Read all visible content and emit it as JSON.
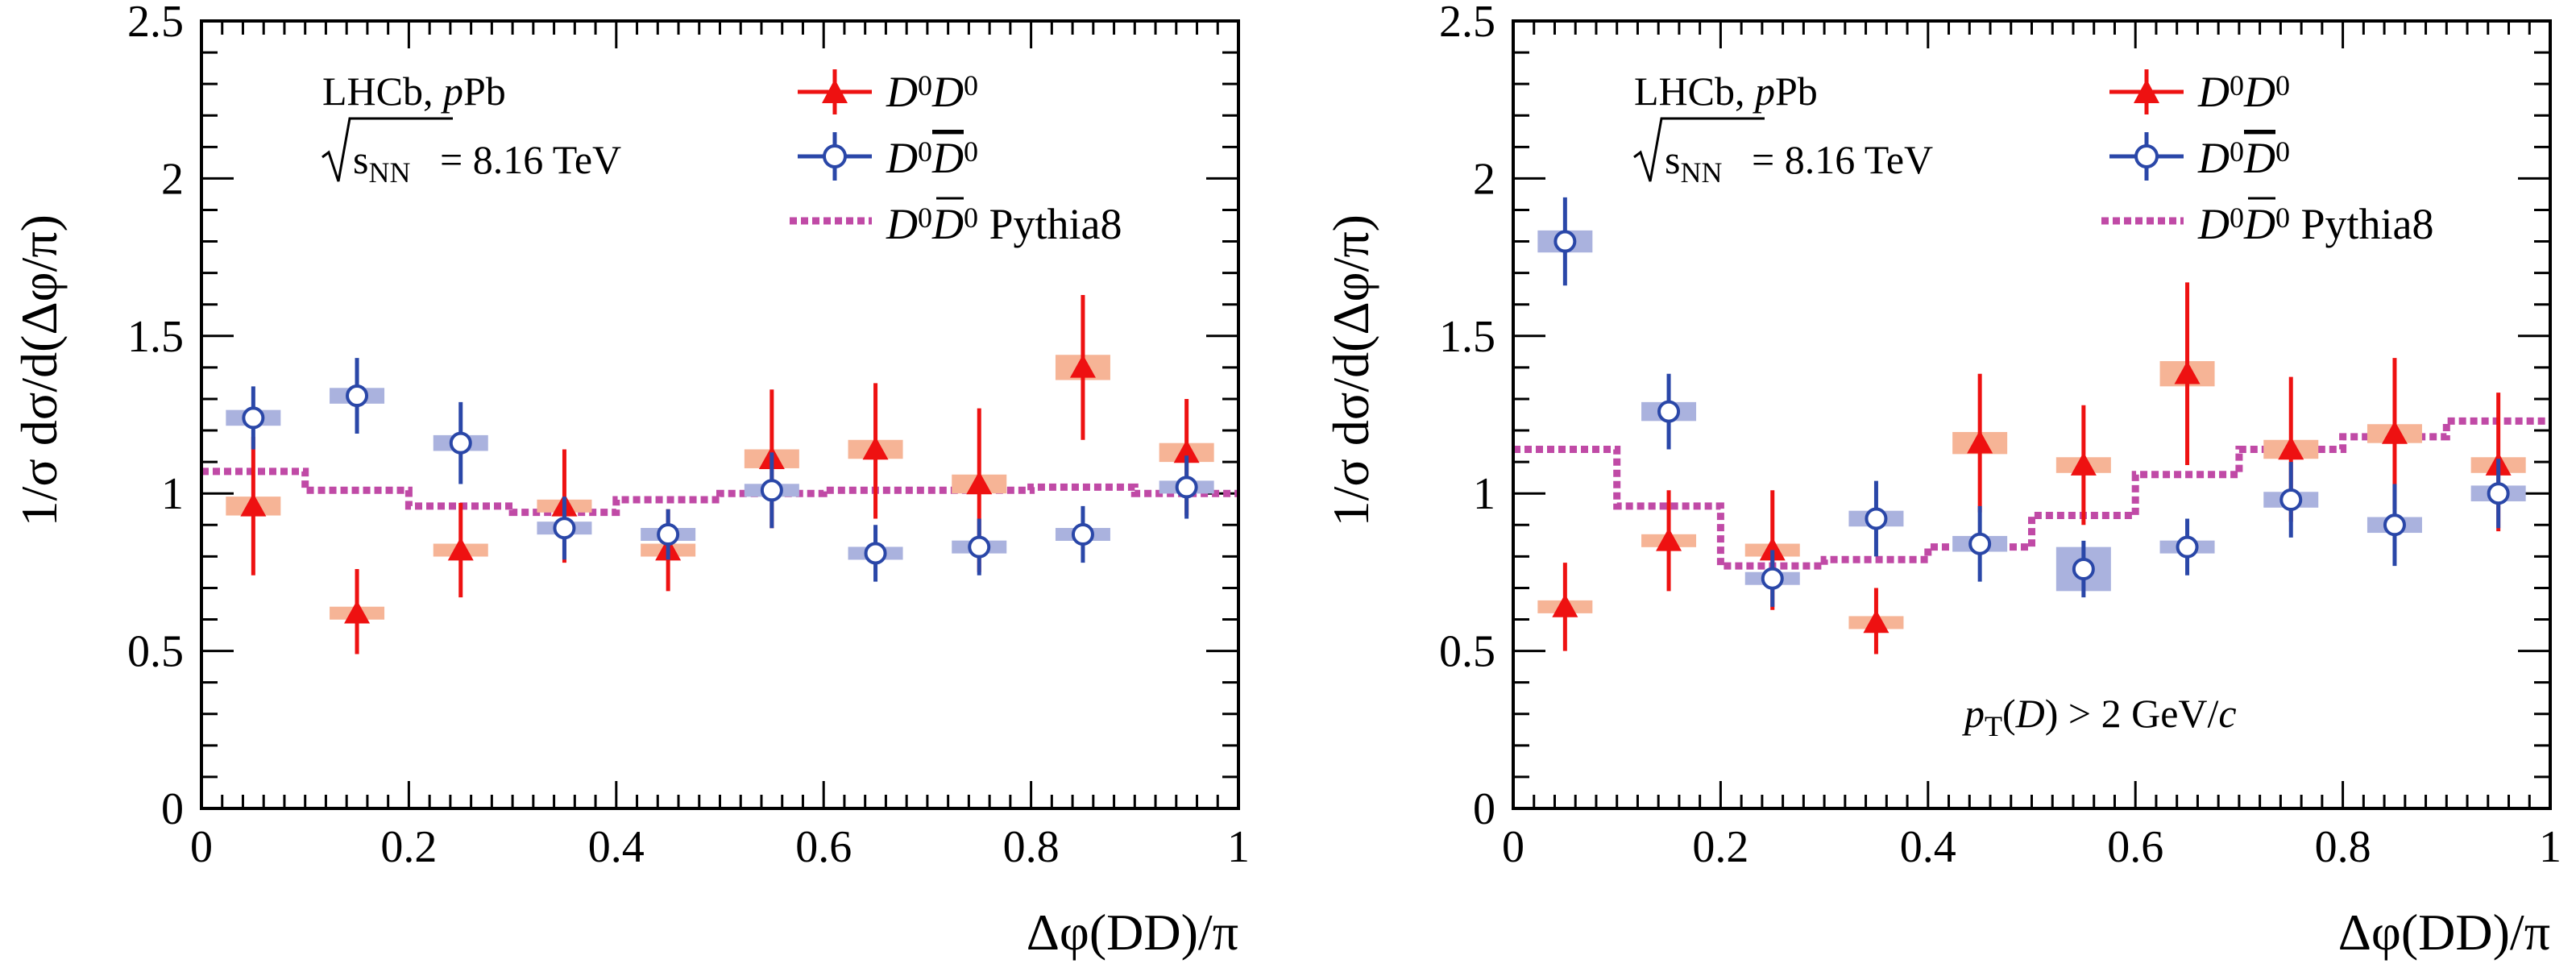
{
  "colors": {
    "dd": "#ee1111",
    "dd_sys": "#f6b496",
    "ddbar": "#2a47a8",
    "ddbar_sys": "#aab2de",
    "pythia": "#c04aa6"
  },
  "chart_data": [
    {
      "type": "scatter",
      "title": "",
      "xlabel": "Δφ(DD)/π",
      "ylabel": "1/σ dσ/d(Δφ/π)",
      "xlim": [
        0,
        1
      ],
      "ylim": [
        0,
        2.5
      ],
      "xticks": [
        "0",
        "0.2",
        "0.4",
        "0.6",
        "0.8",
        "1"
      ],
      "xtick_values": [
        0,
        0.2,
        0.4,
        0.6,
        0.8,
        1
      ],
      "yticks": [
        "0",
        "0.5",
        "1",
        "1.5",
        "2",
        "2.5"
      ],
      "ytick_values": [
        0,
        0.5,
        1,
        1.5,
        2,
        2.5
      ],
      "annotations": {
        "experiment": "LHCb, ",
        "experiment_italic": "p",
        "system": "Pb",
        "energy_prefix": "s",
        "energy_sub": "NN",
        "energy_value": "= 8.16 TeV",
        "cut": ""
      },
      "legend": {
        "position": "top-right",
        "entries": [
          "D0D0",
          "D0D̄0",
          "D0D̄0 Pythia8"
        ]
      },
      "series": [
        {
          "name": "D0D0",
          "marker": "triangle",
          "x": [
            0.05,
            0.15,
            0.25,
            0.35,
            0.45,
            0.55,
            0.65,
            0.75,
            0.85,
            0.95
          ],
          "y": [
            0.96,
            0.62,
            0.82,
            0.96,
            0.82,
            1.11,
            1.14,
            1.03,
            1.4,
            1.13
          ],
          "yerr_low": [
            0.22,
            0.13,
            0.15,
            0.18,
            0.13,
            0.22,
            0.22,
            0.28,
            0.23,
            0.2
          ],
          "yerr_high": [
            0.22,
            0.14,
            0.15,
            0.18,
            0.13,
            0.22,
            0.21,
            0.24,
            0.23,
            0.17
          ],
          "sys": [
            0.03,
            0.02,
            0.02,
            0.02,
            0.02,
            0.03,
            0.03,
            0.03,
            0.04,
            0.03
          ]
        },
        {
          "name": "D0D̄0",
          "marker": "open-circle",
          "x": [
            0.05,
            0.15,
            0.25,
            0.35,
            0.45,
            0.55,
            0.65,
            0.75,
            0.85,
            0.95
          ],
          "y": [
            1.24,
            1.31,
            1.16,
            0.89,
            0.87,
            1.01,
            0.81,
            0.83,
            0.87,
            1.02
          ],
          "yerr_low": [
            0.1,
            0.12,
            0.13,
            0.1,
            0.08,
            0.12,
            0.09,
            0.09,
            0.09,
            0.1
          ],
          "yerr_high": [
            0.1,
            0.12,
            0.13,
            0.1,
            0.08,
            0.12,
            0.09,
            0.09,
            0.09,
            0.1
          ],
          "sys": [
            0.025,
            0.025,
            0.025,
            0.02,
            0.02,
            0.02,
            0.02,
            0.02,
            0.02,
            0.02
          ]
        },
        {
          "name": "D0D̄0 Pythia8",
          "marker": "dashed-step",
          "edges": [
            0,
            0.1,
            0.2,
            0.3,
            0.4,
            0.5,
            0.6,
            0.7,
            0.8,
            0.9,
            1.0
          ],
          "values": [
            1.07,
            1.01,
            0.96,
            0.94,
            0.98,
            1.0,
            1.01,
            1.01,
            1.02,
            1.0
          ]
        }
      ]
    },
    {
      "type": "scatter",
      "title": "",
      "xlabel": "Δφ(DD)/π",
      "ylabel": "1/σ dσ/d(Δφ/π)",
      "xlim": [
        0,
        1
      ],
      "ylim": [
        0,
        2.5
      ],
      "xticks": [
        "0",
        "0.2",
        "0.4",
        "0.6",
        "0.8",
        "1"
      ],
      "xtick_values": [
        0,
        0.2,
        0.4,
        0.6,
        0.8,
        1
      ],
      "yticks": [
        "0",
        "0.5",
        "1",
        "1.5",
        "2",
        "2.5"
      ],
      "ytick_values": [
        0,
        0.5,
        1,
        1.5,
        2,
        2.5
      ],
      "annotations": {
        "experiment": "LHCb, ",
        "experiment_italic": "p",
        "system": "Pb",
        "energy_prefix": "s",
        "energy_sub": "NN",
        "energy_value": "= 8.16 TeV",
        "cut": "pT(D) > 2 GeV/c"
      },
      "legend": {
        "position": "top-right",
        "entries": [
          "D0D0",
          "D0D̄0",
          "D0D̄0 Pythia8"
        ]
      },
      "series": [
        {
          "name": "D0D0",
          "marker": "triangle",
          "x": [
            0.05,
            0.15,
            0.25,
            0.35,
            0.45,
            0.55,
            0.65,
            0.75,
            0.85,
            0.95
          ],
          "y": [
            0.64,
            0.85,
            0.82,
            0.59,
            1.16,
            1.09,
            1.38,
            1.14,
            1.19,
            1.09
          ],
          "yerr_low": [
            0.14,
            0.16,
            0.19,
            0.1,
            0.22,
            0.19,
            0.29,
            0.23,
            0.24,
            0.21
          ],
          "yerr_high": [
            0.14,
            0.16,
            0.19,
            0.11,
            0.22,
            0.19,
            0.29,
            0.23,
            0.24,
            0.23
          ],
          "sys": [
            0.02,
            0.02,
            0.02,
            0.02,
            0.035,
            0.025,
            0.04,
            0.03,
            0.03,
            0.025
          ]
        },
        {
          "name": "D0D̄0",
          "marker": "open-circle",
          "x": [
            0.05,
            0.15,
            0.25,
            0.35,
            0.45,
            0.55,
            0.65,
            0.75,
            0.85,
            0.95
          ],
          "y": [
            1.8,
            1.26,
            0.73,
            0.92,
            0.84,
            0.76,
            0.83,
            0.98,
            0.9,
            1.0
          ],
          "yerr_low": [
            0.14,
            0.12,
            0.09,
            0.12,
            0.12,
            0.09,
            0.09,
            0.12,
            0.13,
            0.11
          ],
          "yerr_high": [
            0.14,
            0.12,
            0.09,
            0.12,
            0.12,
            0.09,
            0.09,
            0.12,
            0.13,
            0.11
          ],
          "sys": [
            0.035,
            0.03,
            0.02,
            0.025,
            0.025,
            0.07,
            0.02,
            0.025,
            0.025,
            0.025
          ]
        },
        {
          "name": "D0D̄0 Pythia8",
          "marker": "dashed-step",
          "edges": [
            0,
            0.1,
            0.2,
            0.3,
            0.4,
            0.5,
            0.6,
            0.7,
            0.8,
            0.9,
            1.0
          ],
          "values": [
            1.14,
            0.96,
            0.77,
            0.79,
            0.83,
            0.93,
            1.06,
            1.14,
            1.18,
            1.23
          ]
        }
      ]
    }
  ]
}
